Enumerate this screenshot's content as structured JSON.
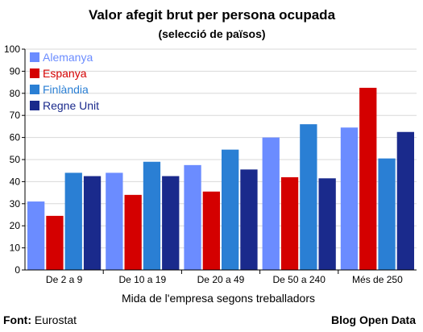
{
  "chart_data": {
    "type": "bar",
    "title": "Valor afegit brut per persona ocupada",
    "subtitle": "(selecció de països)",
    "xlabel": "Mida de l'empresa segons treballadors",
    "ylabel": "",
    "ylim": [
      0,
      100
    ],
    "yticks": [
      0,
      10,
      20,
      30,
      40,
      50,
      60,
      70,
      80,
      90,
      100
    ],
    "grid": true,
    "legend_position": "top-left",
    "categories": [
      "De 2 a 9",
      "De 10 a 19",
      "De 20 a 49",
      "De 50 a 240",
      "Més de 250"
    ],
    "series": [
      {
        "name": "Alemanya",
        "color": "#6b8cff",
        "values": [
          31,
          44,
          47.5,
          60,
          64.5
        ]
      },
      {
        "name": "Espanya",
        "color": "#d40000",
        "values": [
          24.5,
          34,
          35.5,
          42,
          82.5
        ]
      },
      {
        "name": "Finlàndia",
        "color": "#2a7fd4",
        "values": [
          44,
          49,
          54.5,
          66,
          50.5
        ]
      },
      {
        "name": "Regne Unit",
        "color": "#1a2a8c",
        "values": [
          42.5,
          42.5,
          45.5,
          41.5,
          62.5
        ]
      }
    ]
  },
  "footer": {
    "source_label": "Font:",
    "source_value": "Eurostat",
    "credit": "Blog Open Data"
  }
}
